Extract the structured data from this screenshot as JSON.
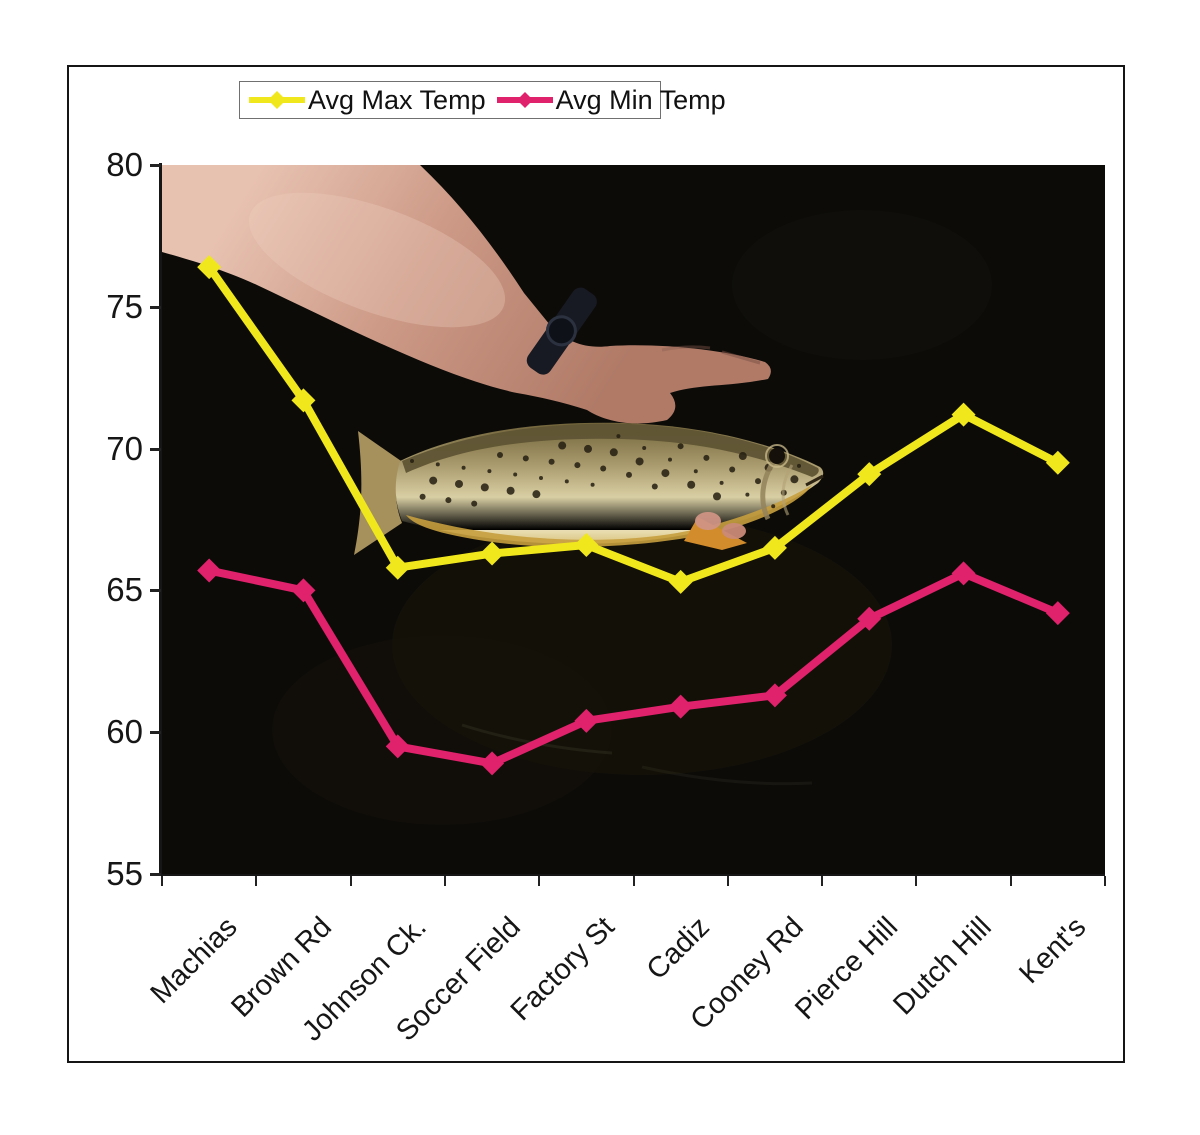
{
  "legend": {
    "items": [
      {
        "label": "Avg Max Temp"
      },
      {
        "label": "Avg Min Temp"
      }
    ]
  },
  "chart_data": {
    "type": "line",
    "marker": "diamond",
    "categories": [
      "Machias",
      "Brown Rd",
      "Johnson Ck.",
      "Soccer Field",
      "Factory St",
      "Cadiz",
      "Cooney Rd",
      "Pierce Hill",
      "Dutch Hill",
      "Kent's"
    ],
    "series": [
      {
        "name": "Avg Max Temp",
        "color": "#f0e81c",
        "values": [
          76.4,
          71.7,
          65.8,
          66.3,
          66.6,
          65.3,
          66.5,
          69.1,
          71.2,
          69.5
        ]
      },
      {
        "name": "Avg Min Temp",
        "color": "#e0216b",
        "values": [
          65.7,
          65.0,
          59.5,
          58.9,
          60.4,
          60.9,
          61.3,
          64.0,
          65.6,
          64.2
        ]
      }
    ],
    "ylim": [
      55,
      80
    ],
    "yticks": [
      80,
      75,
      70,
      65,
      60,
      55
    ],
    "grid": false,
    "legend_position": "top",
    "background_photo": "hand holding a brown trout against a dark background"
  },
  "colors": {
    "axis": "#161616",
    "frame_border": "#151515",
    "page_background": "#ffffff"
  }
}
